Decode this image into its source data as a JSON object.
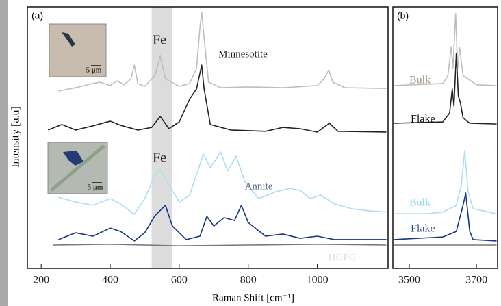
{
  "x_label": "Raman Shift [cm⁻¹]",
  "y_label": "Intensity [a.u]",
  "insets": [
    "5 μm",
    "5 μm"
  ],
  "chart_data": [
    {
      "type": "line",
      "panel_label": "(a)",
      "xlim": [
        160,
        1205
      ],
      "ylim": [
        0,
        100
      ],
      "xticks": [
        200,
        400,
        600,
        800,
        1000
      ],
      "highlight": [
        520,
        580
      ],
      "highlight_color": "#dcdcdc",
      "annotations": [
        "Fe",
        "Fe",
        "Minnesotite",
        "Annite",
        "HOPG"
      ],
      "series": [
        {
          "color": "#bdbdbd",
          "x": [
            250,
            300,
            350,
            370,
            400,
            420,
            440,
            460,
            470,
            480,
            500,
            530,
            545,
            560,
            600,
            630,
            650,
            660,
            665,
            670,
            685,
            720,
            800,
            900,
            1000,
            1020,
            1033,
            1045,
            1080,
            1200
          ],
          "values": [
            67.8,
            69.1,
            70.7,
            71.2,
            69.9,
            71.7,
            70.2,
            72.5,
            77.7,
            70.7,
            69.6,
            73.8,
            81.2,
            72.5,
            69.6,
            70.7,
            76.4,
            92.1,
            97.9,
            90.8,
            71.2,
            69.1,
            69.4,
            69.1,
            69.9,
            72.5,
            75.9,
            71.2,
            69.1,
            68.8
          ]
        },
        {
          "color": "#222222",
          "x": [
            220,
            260,
            300,
            350,
            400,
            430,
            480,
            520,
            545,
            570,
            600,
            630,
            650,
            665,
            672,
            690,
            750,
            850,
            900,
            950,
            1000,
            1035,
            1060,
            1200
          ],
          "values": [
            52.9,
            55.0,
            52.9,
            54.5,
            56.3,
            54.7,
            52.9,
            53.9,
            58.1,
            53.4,
            56.0,
            64.7,
            68.6,
            77.7,
            68.6,
            55.0,
            52.9,
            52.4,
            53.9,
            53.4,
            52.1,
            55.5,
            52.4,
            52.1
          ]
        },
        {
          "color": "#addcf3",
          "x": [
            250,
            300,
            350,
            400,
            430,
            470,
            500,
            530,
            545,
            570,
            600,
            630,
            670,
            690,
            720,
            740,
            765,
            790,
            830,
            880,
            920,
            950,
            980,
            1010,
            1050,
            1100,
            1150,
            1200
          ],
          "values": [
            27.2,
            25.4,
            24.1,
            26.7,
            24.6,
            20.7,
            26.7,
            35.9,
            37.7,
            31.9,
            25.4,
            28.0,
            43.7,
            38.5,
            44.5,
            37.2,
            42.9,
            33.2,
            26.7,
            29.3,
            30.6,
            29.8,
            26.7,
            28.0,
            24.6,
            22.8,
            22.0,
            21.5
          ]
        },
        {
          "color": "#14338a",
          "x": [
            250,
            300,
            350,
            400,
            430,
            470,
            500,
            530,
            560,
            580,
            620,
            660,
            680,
            700,
            730,
            760,
            780,
            800,
            850,
            900,
            950,
            1000,
            1050,
            1200
          ],
          "values": [
            11.0,
            13.6,
            12.3,
            15.4,
            14.1,
            10.5,
            13.6,
            20.2,
            24.1,
            16.2,
            11.0,
            12.3,
            19.9,
            16.2,
            19.4,
            18.3,
            24.1,
            17.5,
            12.3,
            13.1,
            11.5,
            12.3,
            11.0,
            11.0
          ]
        },
        {
          "color": "#777777",
          "x": [
            235,
            400,
            600,
            800,
            1000,
            1200
          ],
          "values": [
            8.9,
            9.2,
            8.6,
            8.9,
            9.2,
            8.9
          ]
        }
      ]
    },
    {
      "type": "line",
      "panel_label": "(b)",
      "xlim": [
        3451,
        3763
      ],
      "ylim": [
        0,
        100
      ],
      "xticks": [
        3500,
        3700
      ],
      "series": [
        {
          "name": "Bulk",
          "color": "#bdbdbd",
          "x": [
            3455,
            3600,
            3615,
            3625,
            3630,
            3638,
            3644,
            3650,
            3660,
            3700,
            3760
          ],
          "values": [
            69.9,
            70.7,
            73.8,
            84.8,
            76.4,
            97.4,
            76.4,
            84.3,
            73.8,
            70.2,
            69.9
          ]
        },
        {
          "name": "Flake",
          "color": "#222222",
          "x": [
            3455,
            3600,
            3620,
            3628,
            3633,
            3640,
            3646,
            3652,
            3660,
            3680,
            3760
          ],
          "values": [
            55.5,
            56.0,
            59.4,
            68.6,
            62.0,
            82.2,
            66.0,
            63.4,
            57.6,
            55.5,
            55.2
          ]
        },
        {
          "name": "Bulk",
          "color": "#addcf3",
          "x": [
            3455,
            3550,
            3600,
            3640,
            3655,
            3665,
            3675,
            3690,
            3760
          ],
          "values": [
            20.9,
            20.9,
            21.5,
            24.1,
            31.9,
            45.0,
            29.3,
            22.8,
            20.9
          ]
        },
        {
          "name": "Flake",
          "color": "#14338a",
          "x": [
            3455,
            3600,
            3640,
            3660,
            3668,
            3680,
            3690,
            3760
          ],
          "values": [
            11.0,
            12.0,
            14.1,
            24.1,
            28.8,
            14.1,
            11.0,
            10.5
          ]
        },
        {
          "color": "#777777",
          "x": [
            3455,
            3760
          ],
          "values": [
            8.9,
            8.9
          ]
        }
      ]
    }
  ]
}
